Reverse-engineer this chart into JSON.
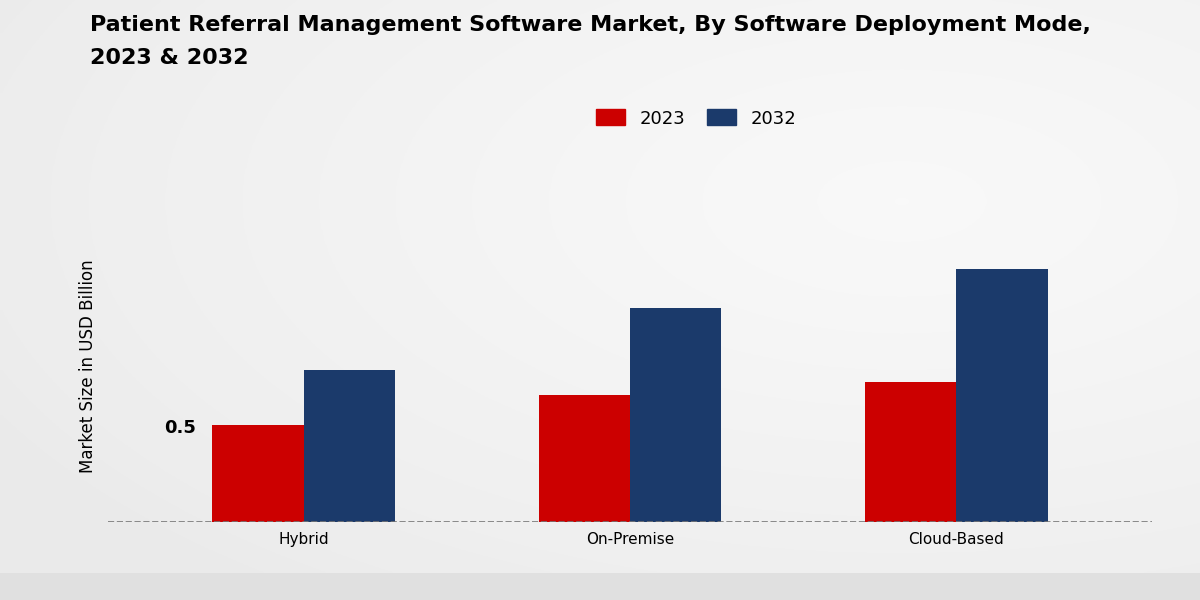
{
  "title_line1": "Patient Referral Management Software Market, By Software Deployment Mode,",
  "title_line2": "2023 & 2032",
  "ylabel": "Market Size in USD Billion",
  "categories": [
    "Hybrid",
    "On-Premise",
    "Cloud-Based"
  ],
  "values_2023": [
    0.5,
    0.65,
    0.72
  ],
  "values_2032": [
    0.78,
    1.1,
    1.3
  ],
  "color_2023": "#cc0000",
  "color_2032": "#1b3a6b",
  "bar_width": 0.28,
  "legend_labels": [
    "2023",
    "2032"
  ],
  "ylim": [
    0,
    1.6
  ],
  "title_fontsize": 16,
  "axis_label_fontsize": 12,
  "tick_fontsize": 11,
  "legend_fontsize": 13,
  "footer_color": "#cc0000",
  "annotation_value": "0.5",
  "bg_light": 0.95,
  "bg_dark": 0.84
}
